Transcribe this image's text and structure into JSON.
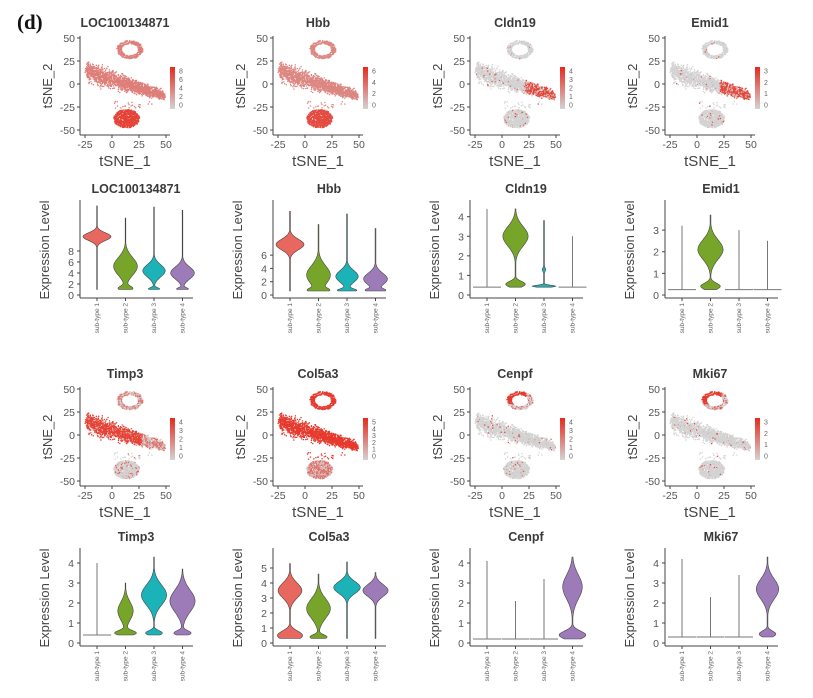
{
  "panel_label": "(d)",
  "colors": {
    "sub-type 1": "#e8675f",
    "sub-type 2": "#77a52a",
    "sub-type 3": "#1bb2b8",
    "sub-type 4": "#9c7bb8",
    "expression_low": "#d3d3d3",
    "expression_high": "#e8291c"
  },
  "chart_data": [
    {
      "type": "scatter",
      "title": "LOC100134871",
      "xlabel": "tSNE_1",
      "ylabel": "tSNE_2",
      "xticks": [
        "-25",
        "0",
        "25",
        "50"
      ],
      "yticks": [
        "50",
        "25",
        "0",
        "-25",
        "-50"
      ],
      "xlim": [
        -28,
        55
      ],
      "ylim": [
        -55,
        55
      ],
      "colorbar_ticks": [
        "8",
        "6",
        "4",
        "2",
        "0"
      ],
      "high_expression_region": "all cells, strongest in bottom cluster"
    },
    {
      "type": "scatter",
      "title": "Hbb",
      "xlabel": "tSNE_1",
      "ylabel": "tSNE_2",
      "xticks": [
        "-25",
        "0",
        "25",
        "50"
      ],
      "yticks": [
        "50",
        "25",
        "0",
        "-25",
        "-50"
      ],
      "xlim": [
        -28,
        55
      ],
      "ylim": [
        -55,
        55
      ],
      "colorbar_ticks": [
        "6",
        "4",
        "2",
        "0"
      ],
      "high_expression_region": "all cells, strongest in bottom cluster"
    },
    {
      "type": "scatter",
      "title": "Cldn19",
      "xlabel": "tSNE_1",
      "ylabel": "tSNE_2",
      "xticks": [
        "-25",
        "0",
        "25",
        "50"
      ],
      "yticks": [
        "50",
        "25",
        "0",
        "-25",
        "-50"
      ],
      "xlim": [
        -28,
        55
      ],
      "ylim": [
        -55,
        55
      ],
      "colorbar_ticks": [
        "4",
        "3",
        "2",
        "1",
        "0"
      ],
      "high_expression_region": "right tail of main cluster"
    },
    {
      "type": "scatter",
      "title": "Emid1",
      "xlabel": "tSNE_1",
      "ylabel": "tSNE_2",
      "xticks": [
        "-25",
        "0",
        "25",
        "50"
      ],
      "yticks": [
        "50",
        "25",
        "0",
        "-25",
        "-50"
      ],
      "xlim": [
        -28,
        55
      ],
      "ylim": [
        -55,
        55
      ],
      "colorbar_ticks": [
        "3",
        "2",
        "1",
        "0"
      ],
      "high_expression_region": "right tail of main cluster"
    },
    {
      "type": "violin",
      "title": "LOC100134871",
      "ylabel": "Expression Level",
      "categories": [
        "sub-type 1",
        "sub-type 2",
        "sub-type 3",
        "sub-type 4"
      ],
      "yticks": [
        "8",
        "6",
        "4",
        "2",
        "0"
      ],
      "ylim": [
        0,
        8.45
      ],
      "violins": [
        {
          "min": 0.5,
          "max": 8.1,
          "modes": [
            [
              5.3,
              0.35,
              1.0
            ]
          ]
        },
        {
          "min": 0.5,
          "max": 7.0,
          "modes": [
            [
              2.6,
              0.8,
              0.85
            ],
            [
              0.6,
              0.2,
              0.5
            ]
          ]
        },
        {
          "min": 0.5,
          "max": 8.0,
          "modes": [
            [
              2.2,
              0.55,
              0.8
            ],
            [
              0.55,
              0.12,
              0.4
            ]
          ]
        },
        {
          "min": 0.5,
          "max": 7.7,
          "modes": [
            [
              2.0,
              0.55,
              0.85
            ],
            [
              0.55,
              0.12,
              0.4
            ]
          ]
        }
      ]
    },
    {
      "type": "violin",
      "title": "Hbb",
      "ylabel": "Expression Level",
      "categories": [
        "sub-type 1",
        "sub-type 2",
        "sub-type 3",
        "sub-type 4"
      ],
      "yticks": [
        "6",
        "4",
        "2",
        "0"
      ],
      "ylim": [
        0,
        7.0
      ],
      "violins": [
        {
          "min": 0.3,
          "max": 6.3,
          "modes": [
            [
              3.8,
              0.4,
              1.0
            ]
          ]
        },
        {
          "min": 0.3,
          "max": 5.3,
          "modes": [
            [
              1.5,
              0.7,
              0.85
            ],
            [
              0.35,
              0.15,
              0.6
            ]
          ]
        },
        {
          "min": 0.3,
          "max": 6.1,
          "modes": [
            [
              1.4,
              0.45,
              0.8
            ],
            [
              0.35,
              0.12,
              0.65
            ]
          ]
        },
        {
          "min": 0.3,
          "max": 5.0,
          "modes": [
            [
              1.2,
              0.45,
              0.85
            ],
            [
              0.35,
              0.12,
              0.6
            ]
          ]
        }
      ]
    },
    {
      "type": "violin",
      "title": "Cldn19",
      "ylabel": "Expression Level",
      "categories": [
        "sub-type 1",
        "sub-type 2",
        "sub-type 3",
        "sub-type 4"
      ],
      "yticks": [
        "4",
        "3",
        "2",
        "1",
        "0"
      ],
      "ylim": [
        0,
        4.75
      ],
      "violins": [
        {
          "min": 0.4,
          "max": 4.4,
          "flat": true
        },
        {
          "min": 0.4,
          "max": 4.4,
          "modes": [
            [
              3.0,
              0.5,
              0.9
            ],
            [
              0.55,
              0.15,
              0.7
            ]
          ]
        },
        {
          "min": 0.4,
          "max": 3.8,
          "modes": [
            [
              0.45,
              0.05,
              0.85
            ],
            [
              1.3,
              0.1,
              0.12
            ]
          ]
        },
        {
          "min": 0.4,
          "max": 3.0,
          "flat": true
        }
      ]
    },
    {
      "type": "violin",
      "title": "Emid1",
      "ylabel": "Expression Level",
      "categories": [
        "sub-type 1",
        "sub-type 2",
        "sub-type 3",
        "sub-type 4"
      ],
      "yticks": [
        "3",
        "2",
        "1",
        "0"
      ],
      "ylim": [
        0,
        4.3
      ],
      "violins": [
        {
          "min": 0.25,
          "max": 3.2,
          "flat": true
        },
        {
          "min": 0.25,
          "max": 3.7,
          "modes": [
            [
              2.1,
              0.45,
              0.9
            ],
            [
              0.4,
              0.15,
              0.7
            ]
          ]
        },
        {
          "min": 0.25,
          "max": 3.0,
          "flat": true
        },
        {
          "min": 0.25,
          "max": 2.5,
          "flat": true
        }
      ]
    },
    {
      "type": "scatter",
      "title": "Timp3",
      "xlabel": "tSNE_1",
      "ylabel": "tSNE_2",
      "xticks": [
        "-25",
        "0",
        "25",
        "50"
      ],
      "yticks": [
        "50",
        "25",
        "0",
        "-25",
        "-50"
      ],
      "xlim": [
        -28,
        55
      ],
      "ylim": [
        -55,
        55
      ],
      "colorbar_ticks": [
        "4",
        "3",
        "2",
        "1",
        "0"
      ],
      "high_expression_region": "main cluster, left side"
    },
    {
      "type": "scatter",
      "title": "Col5a3",
      "xlabel": "tSNE_1",
      "ylabel": "tSNE_2",
      "xticks": [
        "-25",
        "0",
        "25",
        "50"
      ],
      "yticks": [
        "50",
        "25",
        "0",
        "-25",
        "-50"
      ],
      "xlim": [
        -28,
        55
      ],
      "ylim": [
        -55,
        55
      ],
      "colorbar_ticks": [
        "5",
        "4",
        "3",
        "2",
        "1",
        "0"
      ],
      "high_expression_region": "main cluster and top loop"
    },
    {
      "type": "scatter",
      "title": "Cenpf",
      "xlabel": "tSNE_1",
      "ylabel": "tSNE_2",
      "xticks": [
        "-25",
        "0",
        "25",
        "50"
      ],
      "yticks": [
        "50",
        "25",
        "0",
        "-25",
        "-50"
      ],
      "xlim": [
        -28,
        55
      ],
      "ylim": [
        -55,
        55
      ],
      "colorbar_ticks": [
        "4",
        "3",
        "2",
        "1",
        "0"
      ],
      "high_expression_region": "top loop"
    },
    {
      "type": "scatter",
      "title": "Mki67",
      "xlabel": "tSNE_1",
      "ylabel": "tSNE_2",
      "xticks": [
        "-25",
        "0",
        "25",
        "50"
      ],
      "yticks": [
        "50",
        "25",
        "0",
        "-25",
        "-50"
      ],
      "xlim": [
        -28,
        55
      ],
      "ylim": [
        -55,
        55
      ],
      "colorbar_ticks": [
        "3",
        "2",
        "1",
        "0"
      ],
      "high_expression_region": "top loop"
    },
    {
      "type": "violin",
      "title": "Timp3",
      "ylabel": "Expression Level",
      "categories": [
        "sub-type 1",
        "sub-type 2",
        "sub-type 3",
        "sub-type 4"
      ],
      "yticks": [
        "4",
        "3",
        "2",
        "1",
        "0"
      ],
      "ylim": [
        0,
        4.65
      ],
      "violins": [
        {
          "min": 0.4,
          "max": 4.0,
          "flat": true
        },
        {
          "min": 0.4,
          "max": 3.0,
          "modes": [
            [
              1.6,
              0.45,
              0.55
            ],
            [
              0.5,
              0.12,
              0.75
            ]
          ]
        },
        {
          "min": 0.4,
          "max": 4.3,
          "modes": [
            [
              2.4,
              0.5,
              0.9
            ],
            [
              0.5,
              0.12,
              0.6
            ]
          ]
        },
        {
          "min": 0.4,
          "max": 3.7,
          "modes": [
            [
              2.1,
              0.55,
              0.9
            ],
            [
              0.5,
              0.12,
              0.6
            ]
          ]
        }
      ]
    },
    {
      "type": "violin",
      "title": "Col5a3",
      "ylabel": "Expression Level",
      "categories": [
        "sub-type 1",
        "sub-type 2",
        "sub-type 3",
        "sub-type 4"
      ],
      "yticks": [
        "5",
        "4",
        "3",
        "2",
        "1",
        "0"
      ],
      "ylim": [
        0,
        6.2
      ],
      "violins": [
        {
          "min": 0.3,
          "max": 5.3,
          "modes": [
            [
              3.5,
              0.5,
              0.85
            ],
            [
              0.5,
              0.3,
              0.9
            ]
          ]
        },
        {
          "min": 0.3,
          "max": 4.6,
          "modes": [
            [
              2.3,
              0.65,
              0.85
            ],
            [
              0.4,
              0.15,
              0.6
            ]
          ]
        },
        {
          "min": 0.3,
          "max": 5.4,
          "modes": [
            [
              3.7,
              0.4,
              0.95
            ]
          ]
        },
        {
          "min": 0.3,
          "max": 4.7,
          "modes": [
            [
              3.5,
              0.4,
              0.9
            ]
          ]
        }
      ]
    },
    {
      "type": "violin",
      "title": "Cenpf",
      "ylabel": "Expression Level",
      "categories": [
        "sub-type 1",
        "sub-type 2",
        "sub-type 3",
        "sub-type 4"
      ],
      "yticks": [
        "4",
        "3",
        "2",
        "1",
        "0"
      ],
      "ylim": [
        0,
        4.65
      ],
      "violins": [
        {
          "min": 0.2,
          "max": 4.1,
          "flat": true
        },
        {
          "min": 0.2,
          "max": 2.1,
          "flat": true
        },
        {
          "min": 0.2,
          "max": 3.2,
          "flat": true
        },
        {
          "min": 0.2,
          "max": 4.3,
          "modes": [
            [
              2.8,
              0.6,
              0.7
            ],
            [
              0.4,
              0.2,
              0.95
            ]
          ]
        }
      ]
    },
    {
      "type": "violin",
      "title": "Mki67",
      "ylabel": "Expression Level",
      "categories": [
        "sub-type 1",
        "sub-type 2",
        "sub-type 3",
        "sub-type 4"
      ],
      "yticks": [
        "4",
        "3",
        "2",
        "1",
        "0"
      ],
      "ylim": [
        0,
        4.65
      ],
      "violins": [
        {
          "min": 0.3,
          "max": 4.2,
          "flat": true
        },
        {
          "min": 0.3,
          "max": 2.3,
          "flat": true
        },
        {
          "min": 0.3,
          "max": 3.4,
          "flat": true
        },
        {
          "min": 0.3,
          "max": 4.3,
          "modes": [
            [
              2.7,
              0.5,
              0.8
            ],
            [
              0.45,
              0.15,
              0.6
            ]
          ]
        }
      ]
    }
  ]
}
